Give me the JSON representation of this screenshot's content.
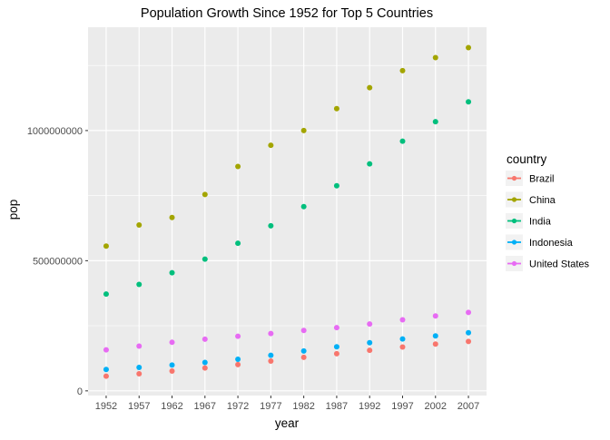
{
  "chart_data": {
    "type": "scatter",
    "title": "Population Growth Since 1952 for Top 5 Countries",
    "xlabel": "year",
    "ylabel": "pop",
    "x": [
      1952,
      1957,
      1962,
      1967,
      1972,
      1977,
      1982,
      1987,
      1992,
      1997,
      2002,
      2007
    ],
    "x_ticks": [
      "1952",
      "1957",
      "1962",
      "1967",
      "1972",
      "1977",
      "1982",
      "1987",
      "1992",
      "1997",
      "2002",
      "2007"
    ],
    "y_ticks": [
      {
        "value": 0,
        "label": "0"
      },
      {
        "value": 500000000,
        "label": "500000000"
      },
      {
        "value": 1000000000,
        "label": "1000000000"
      }
    ],
    "xlim": [
      1949.25,
      2009.75
    ],
    "ylim": [
      -18000000,
      1397000000
    ],
    "grid": true,
    "legend": {
      "title": "country",
      "position": "right"
    },
    "series": [
      {
        "name": "Brazil",
        "color": "#F8766D",
        "values": [
          56600000,
          65600000,
          76000000,
          88000000,
          100800000,
          114300000,
          128960000,
          142940000,
          155980000,
          168550000,
          179910000,
          190010000
        ]
      },
      {
        "name": "China",
        "color": "#A3A500",
        "values": [
          556300000,
          637400000,
          665800000,
          754500000,
          862000000,
          943500000,
          1000300000,
          1084000000,
          1164970000,
          1230080000,
          1280400000,
          1318680000
        ]
      },
      {
        "name": "India",
        "color": "#00BF7D",
        "values": [
          372000000,
          409000000,
          454000000,
          506000000,
          567000000,
          634000000,
          708000000,
          788000000,
          872000000,
          959000000,
          1034170000,
          1110400000
        ]
      },
      {
        "name": "Indonesia",
        "color": "#00B0F6",
        "values": [
          82050000,
          90120000,
          99030000,
          109340000,
          121280000,
          136730000,
          153340000,
          169280000,
          184820000,
          199280000,
          211060000,
          223550000
        ]
      },
      {
        "name": "United States",
        "color": "#E76BF3",
        "values": [
          157550000,
          171980000,
          186540000,
          198710000,
          209900000,
          220240000,
          232190000,
          242800000,
          256890000,
          272910000,
          287680000,
          301140000
        ]
      }
    ]
  }
}
